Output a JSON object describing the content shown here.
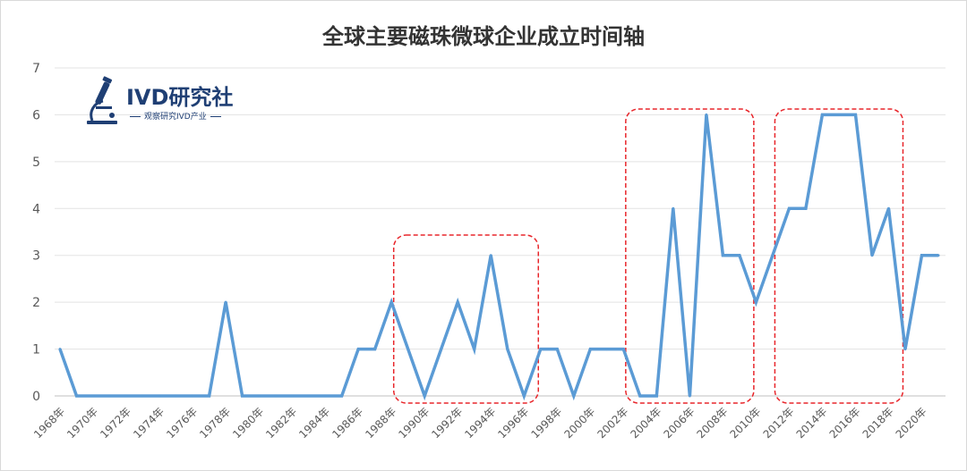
{
  "chart_data": {
    "type": "line",
    "title": "全球主要磁珠微球企业成立时间轴",
    "xlabel": "",
    "ylabel": "",
    "ylim": [
      0,
      7
    ],
    "yticks": [
      0,
      1,
      2,
      3,
      4,
      5,
      6,
      7
    ],
    "grid": true,
    "line_color": "#5b9bd5",
    "highlight_color": "#e8262b",
    "x": [
      "1968年",
      "1969年",
      "1970年",
      "1971年",
      "1972年",
      "1973年",
      "1974年",
      "1975年",
      "1976年",
      "1977年",
      "1978年",
      "1979年",
      "1980年",
      "1981年",
      "1982年",
      "1983年",
      "1984年",
      "1985年",
      "1986年",
      "1987年",
      "1988年",
      "1989年",
      "1990年",
      "1991年",
      "1992年",
      "1993年",
      "1994年",
      "1995年",
      "1996年",
      "1997年",
      "1998年",
      "1999年",
      "2000年",
      "2001年",
      "2002年",
      "2003年",
      "2004年",
      "2005年",
      "2006年",
      "2007年",
      "2008年",
      "2009年",
      "2010年",
      "2011年",
      "2012年",
      "2013年",
      "2014年",
      "2015年",
      "2016年",
      "2017年",
      "2018年",
      "2019年",
      "2020年",
      "2021年"
    ],
    "x_tick_labels": [
      "1968年",
      "1970年",
      "1972年",
      "1974年",
      "1976年",
      "1978年",
      "1980年",
      "1982年",
      "1984年",
      "1986年",
      "1988年",
      "1990年",
      "1992年",
      "1994年",
      "1996年",
      "1998年",
      "2000年",
      "2002年",
      "2004年",
      "2006年",
      "2008年",
      "2010年",
      "2012年",
      "2014年",
      "2016年",
      "2018年",
      "2020年"
    ],
    "series": [
      {
        "values": [
          1,
          0,
          0,
          0,
          0,
          0,
          0,
          0,
          0,
          0,
          2,
          0,
          0,
          0,
          0,
          0,
          0,
          0,
          1,
          1,
          2,
          1,
          0,
          1,
          2,
          1,
          3,
          1,
          0,
          1,
          1,
          0,
          1,
          1,
          1,
          0,
          0,
          4,
          0,
          6,
          3,
          3,
          2,
          3,
          4,
          4,
          6,
          6,
          6,
          3,
          4,
          1,
          3,
          3
        ]
      }
    ],
    "highlight_ranges": [
      [
        "1989年",
        "1996年"
      ],
      [
        "2003年",
        "2009年"
      ],
      [
        "2012年",
        "2018年"
      ]
    ]
  },
  "logo": {
    "name": "IVD研究社",
    "tagline": "观察研究IVD产业",
    "icon": "microscope-icon"
  }
}
